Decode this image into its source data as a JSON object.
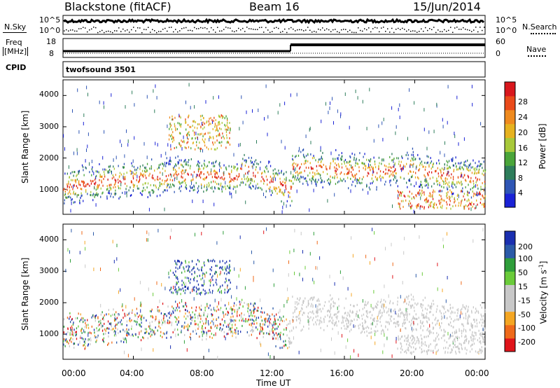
{
  "header": {
    "title": "Blackstone (fitACF)",
    "beam": "Beam 16",
    "date": "15/Jun/2014"
  },
  "status_panels": {
    "nsky_label": "N.Sky",
    "nsky_ticks": [
      "10^5",
      "10^0"
    ],
    "nsearch_label": "N.Search",
    "nsearch_ticks": [
      "10^5",
      "10^0"
    ],
    "freq_label_line1": "Freq",
    "freq_label_line2": "[MHz]",
    "freq_ticks": [
      "18",
      "8"
    ],
    "nave_label": "Nave",
    "nave_ticks": [
      "60",
      "0"
    ],
    "cpid_label": "CPID",
    "cpid_value": "twofsound 3501"
  },
  "colors": {
    "power_scale": [
      "#1a22d6",
      "#2f56b5",
      "#2e7d5b",
      "#4aa53a",
      "#a8c93a",
      "#e6b21f",
      "#ef8a1e",
      "#ea4a1a",
      "#d9171d"
    ],
    "velocity_scale": [
      "#e0141a",
      "#ef6a1a",
      "#f4a623",
      "#c8c8c8",
      "#c8c8c8",
      "#6acb3a",
      "#2f9e3b",
      "#2b5aa8",
      "#1a2fb0"
    ]
  },
  "chart_data": [
    {
      "type": "heatmap",
      "panel": "power",
      "xlabel": "",
      "ylabel": "Slant Range [km]",
      "yticks": [
        "1000",
        "2000",
        "3000",
        "4000"
      ],
      "ylim": [
        200,
        4500
      ],
      "xlim": [
        "00:00",
        "24:00"
      ],
      "colorbar_label": "Power [dB]",
      "colorbar_ticks": [
        "4",
        "8",
        "12",
        "16",
        "20",
        "24",
        "28"
      ],
      "colorbar_range": [
        0,
        30
      ]
    },
    {
      "type": "heatmap",
      "panel": "velocity",
      "xlabel": "Time UT",
      "ylabel": "Slant Range [km]",
      "yticks": [
        "1000",
        "2000",
        "3000",
        "4000"
      ],
      "ylim": [
        200,
        4500
      ],
      "xticks": [
        "00:00",
        "04:00",
        "08:00",
        "12:00",
        "16:00",
        "20:00",
        "00:00"
      ],
      "colorbar_label": "Velocity [m s",
      "colorbar_label_sup": "-1",
      "colorbar_label_end": "]",
      "colorbar_ticks": [
        "200",
        "100",
        "50",
        "15",
        "-15",
        "-50",
        "-100",
        "-200"
      ]
    }
  ]
}
